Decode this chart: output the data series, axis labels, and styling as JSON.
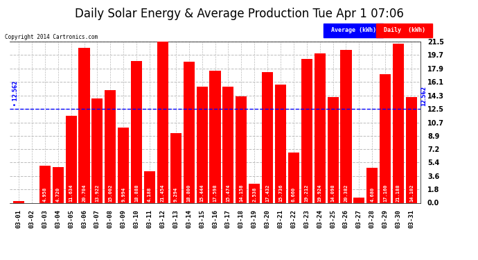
{
  "title": "Daily Solar Energy & Average Production Tue Apr 1 07:06",
  "copyright": "Copyright 2014 Cartronics.com",
  "average_label": "Average (kWh)",
  "daily_label": "Daily  (kWh)",
  "average_value": 12.562,
  "categories": [
    "03-01",
    "03-02",
    "03-03",
    "03-04",
    "03-05",
    "03-06",
    "03-07",
    "03-08",
    "03-09",
    "03-10",
    "03-11",
    "03-12",
    "03-13",
    "03-14",
    "03-15",
    "03-16",
    "03-17",
    "03-18",
    "03-19",
    "03-20",
    "03-21",
    "03-22",
    "03-23",
    "03-24",
    "03-25",
    "03-26",
    "03-27",
    "03-28",
    "03-29",
    "03-30",
    "03-31"
  ],
  "values": [
    0.266,
    0.0,
    4.958,
    4.72,
    11.634,
    20.704,
    13.922,
    15.002,
    9.994,
    18.888,
    4.188,
    21.454,
    9.294,
    18.8,
    15.444,
    17.598,
    15.474,
    14.158,
    2.538,
    17.432,
    15.736,
    6.66,
    19.212,
    19.924,
    14.098,
    20.382,
    0.664,
    4.68,
    17.16,
    21.188,
    14.102
  ],
  "bar_color": "#ff0000",
  "avg_line_color": "#0000ff",
  "background_color": "#ffffff",
  "plot_bg_color": "#ffffff",
  "grid_color": "#bbbbbb",
  "yticks": [
    0.0,
    1.8,
    3.6,
    5.4,
    7.2,
    8.9,
    10.7,
    12.5,
    14.3,
    16.1,
    17.9,
    19.7,
    21.5
  ],
  "ymax": 21.5,
  "ymin": 0.0,
  "value_fontsize": 5.0,
  "tick_fontsize": 7.0,
  "title_fontsize": 12
}
